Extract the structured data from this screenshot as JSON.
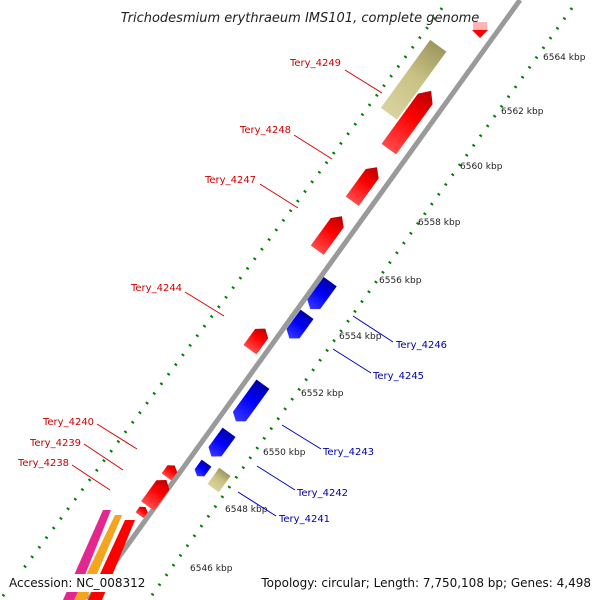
{
  "title": "Trichodesmium erythraeum IMS101, complete genome",
  "footer": {
    "accession": "Accession: NC_008312",
    "summary": "Topology: circular; Length: 7,750,108 bp; Genes: 4,498"
  },
  "colors": {
    "backbone": "#9a9a9a",
    "forward_gene": "#ff0000",
    "reverse_gene": "#0000ff",
    "rna_gene": "#c8c184",
    "forward_label": "#cc0000",
    "reverse_label": "#0000aa",
    "ticks": "#008000",
    "highlight_pink": "#e3278f",
    "highlight_orange": "#f5a41e"
  },
  "ruler_labels": [
    "6546 kbp",
    "6548 kbp",
    "6550 kbp",
    "6552 kbp",
    "6554 kbp",
    "6556 kbp",
    "6558 kbp",
    "6560 kbp",
    "6562 kbp",
    "6564 kbp"
  ],
  "forward_labels": [
    "Tery_4249",
    "Tery_4248",
    "Tery_4247",
    "Tery_4244",
    "Tery_4240",
    "Tery_4239",
    "Tery_4238"
  ],
  "reverse_labels": [
    "Tery_4246",
    "Tery_4245",
    "Tery_4243",
    "Tery_4242",
    "Tery_4241"
  ]
}
